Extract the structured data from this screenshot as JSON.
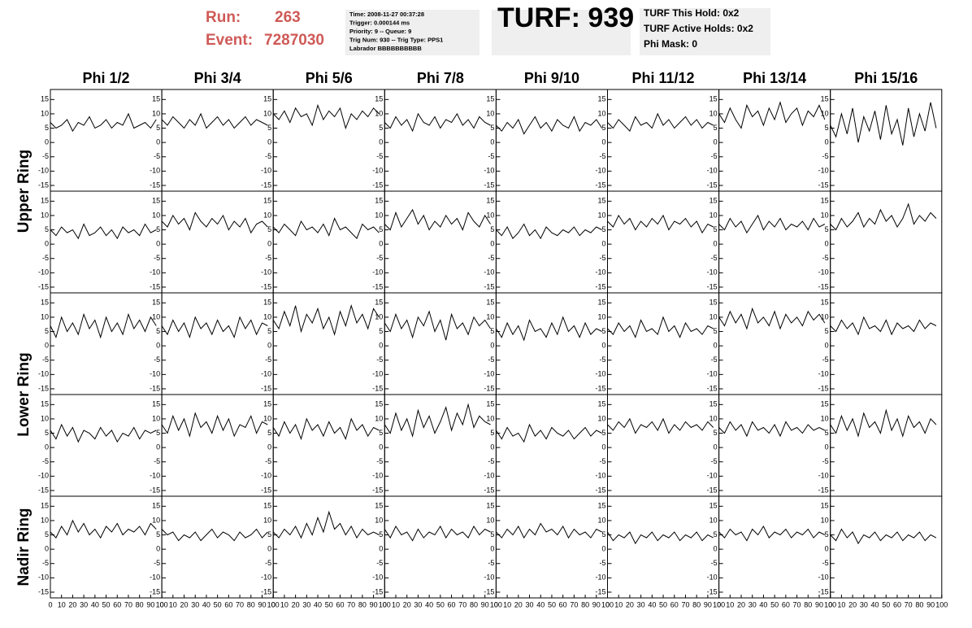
{
  "header": {
    "run_label": "Run:",
    "run": 263,
    "event_label": "Event:",
    "event": 7287030,
    "info": [
      "Time: 2008-11-27 00:37:28",
      "Trigger: 0.000144 ms",
      "Priority: 9 -- Queue: 9",
      "Trig Num: 930 -- Trig Type: PPS1",
      "Labrador BBBBBBBBBB"
    ],
    "turf": "TURF: 939",
    "turf_info": [
      "TURF This Hold: 0x2",
      "TURF Active Holds: 0x2",
      "Phi Mask: 0"
    ]
  },
  "chart_data": {
    "type": "line",
    "color": "#000000",
    "columns": [
      "Phi 1/2",
      "Phi 3/4",
      "Phi 5/6",
      "Phi 7/8",
      "Phi 9/10",
      "Phi 11/12",
      "Phi 13/14",
      "Phi 15/16"
    ],
    "ring_labels": [
      {
        "label": "Upper Ring",
        "rows": [
          0,
          1
        ]
      },
      {
        "label": "Lower Ring",
        "rows": [
          2,
          3
        ]
      },
      {
        "label": "Nadir Ring",
        "rows": [
          4,
          4
        ]
      }
    ],
    "xlim": [
      0,
      100
    ],
    "ylim": [
      -17,
      18.5
    ],
    "xticks": [
      0,
      10,
      20,
      30,
      40,
      50,
      60,
      70,
      80,
      90,
      100
    ],
    "yticks": [
      -15,
      -10,
      -5,
      0,
      5,
      10,
      15
    ],
    "x": [
      0,
      5,
      10,
      15,
      20,
      25,
      30,
      35,
      40,
      45,
      50,
      55,
      60,
      65,
      70,
      75,
      80,
      85,
      90,
      95
    ],
    "panels": [
      [
        [
          7,
          5,
          6,
          8,
          4,
          7,
          6,
          9,
          5,
          6,
          8,
          5,
          7,
          6,
          10,
          5,
          6,
          7,
          5,
          8
        ],
        [
          8,
          6,
          9,
          7,
          5,
          8,
          6,
          10,
          5,
          7,
          9,
          6,
          8,
          5,
          7,
          9,
          6,
          8,
          7,
          6
        ],
        [
          10,
          8,
          11,
          7,
          12,
          9,
          10,
          6,
          13,
          8,
          11,
          9,
          12,
          5,
          10,
          8,
          11,
          9,
          12,
          10
        ],
        [
          7,
          5,
          9,
          6,
          8,
          4,
          10,
          7,
          6,
          9,
          5,
          8,
          7,
          10,
          6,
          8,
          5,
          9,
          7,
          6
        ],
        [
          6,
          4,
          7,
          5,
          8,
          3,
          6,
          9,
          5,
          7,
          4,
          8,
          6,
          5,
          9,
          4,
          7,
          6,
          8,
          5
        ],
        [
          7,
          5,
          8,
          6,
          4,
          9,
          6,
          7,
          5,
          10,
          6,
          8,
          5,
          7,
          9,
          6,
          8,
          5,
          7,
          6
        ],
        [
          10,
          7,
          12,
          8,
          5,
          13,
          9,
          11,
          6,
          12,
          8,
          14,
          7,
          10,
          12,
          6,
          11,
          9,
          13,
          8
        ],
        [
          6,
          2,
          10,
          3,
          12,
          0,
          9,
          4,
          11,
          1,
          13,
          3,
          8,
          -1,
          12,
          2,
          10,
          4,
          14,
          5
        ]
      ],
      [
        [
          5,
          3,
          6,
          4,
          5,
          2,
          7,
          3,
          4,
          6,
          3,
          5,
          2,
          6,
          4,
          5,
          3,
          7,
          4,
          5
        ],
        [
          8,
          6,
          10,
          7,
          9,
          5,
          11,
          8,
          6,
          9,
          7,
          10,
          5,
          8,
          6,
          9,
          4,
          7,
          8,
          6
        ],
        [
          6,
          4,
          7,
          5,
          3,
          8,
          5,
          6,
          4,
          7,
          3,
          9,
          5,
          6,
          4,
          2,
          7,
          5,
          6,
          4
        ],
        [
          7,
          5,
          11,
          6,
          9,
          12,
          7,
          10,
          5,
          8,
          6,
          10,
          7,
          9,
          5,
          11,
          8,
          6,
          10,
          7
        ],
        [
          5,
          3,
          6,
          2,
          4,
          7,
          3,
          5,
          2,
          6,
          4,
          3,
          5,
          4,
          6,
          3,
          5,
          4,
          6,
          5
        ],
        [
          8,
          6,
          10,
          7,
          9,
          5,
          8,
          6,
          9,
          7,
          10,
          5,
          8,
          7,
          9,
          6,
          8,
          4,
          7,
          6
        ],
        [
          7,
          5,
          9,
          6,
          8,
          4,
          7,
          10,
          5,
          8,
          6,
          9,
          5,
          7,
          6,
          8,
          5,
          9,
          6,
          7
        ],
        [
          7,
          5,
          9,
          6,
          8,
          11,
          6,
          9,
          7,
          12,
          8,
          10,
          6,
          9,
          14,
          7,
          10,
          8,
          11,
          9
        ]
      ],
      [
        [
          7,
          3,
          10,
          5,
          8,
          4,
          11,
          6,
          9,
          3,
          10,
          5,
          8,
          4,
          11,
          6,
          9,
          5,
          10,
          7
        ],
        [
          7,
          4,
          9,
          5,
          8,
          3,
          10,
          6,
          8,
          4,
          9,
          5,
          7,
          3,
          10,
          6,
          9,
          4,
          8,
          7
        ],
        [
          9,
          6,
          12,
          7,
          14,
          5,
          11,
          8,
          13,
          6,
          10,
          4,
          12,
          7,
          14,
          8,
          11,
          6,
          13,
          10
        ],
        [
          8,
          5,
          11,
          6,
          9,
          3,
          10,
          7,
          12,
          5,
          9,
          2,
          11,
          6,
          8,
          4,
          10,
          7,
          9,
          6
        ],
        [
          6,
          3,
          8,
          4,
          7,
          2,
          9,
          5,
          6,
          3,
          8,
          4,
          10,
          5,
          7,
          3,
          8,
          4,
          6,
          5
        ],
        [
          6,
          4,
          8,
          5,
          7,
          3,
          9,
          5,
          6,
          4,
          10,
          5,
          7,
          3,
          8,
          5,
          6,
          4,
          7,
          6
        ],
        [
          10,
          7,
          12,
          8,
          11,
          6,
          13,
          8,
          10,
          7,
          12,
          6,
          11,
          8,
          10,
          7,
          12,
          9,
          11,
          8
        ],
        [
          7,
          5,
          9,
          6,
          8,
          4,
          10,
          6,
          7,
          5,
          9,
          4,
          8,
          6,
          7,
          5,
          9,
          6,
          8,
          7
        ]
      ],
      [
        [
          6,
          3,
          8,
          4,
          7,
          2,
          6,
          5,
          3,
          7,
          4,
          6,
          2,
          5,
          4,
          7,
          3,
          6,
          5,
          6
        ],
        [
          8,
          5,
          11,
          6,
          10,
          4,
          12,
          7,
          9,
          5,
          11,
          6,
          10,
          4,
          8,
          7,
          11,
          5,
          9,
          8
        ],
        [
          7,
          4,
          9,
          5,
          8,
          3,
          10,
          6,
          8,
          4,
          9,
          5,
          7,
          3,
          10,
          6,
          8,
          4,
          7,
          6
        ],
        [
          8,
          5,
          12,
          6,
          10,
          4,
          13,
          7,
          11,
          5,
          9,
          14,
          6,
          12,
          8,
          15,
          7,
          11,
          9,
          8
        ],
        [
          6,
          3,
          7,
          4,
          5,
          2,
          8,
          4,
          6,
          3,
          7,
          5,
          4,
          6,
          3,
          5,
          7,
          4,
          6,
          5
        ],
        [
          8,
          6,
          9,
          7,
          10,
          5,
          8,
          7,
          9,
          6,
          10,
          5,
          8,
          6,
          9,
          7,
          8,
          6,
          9,
          7
        ],
        [
          7,
          5,
          9,
          6,
          8,
          4,
          9,
          6,
          7,
          5,
          8,
          4,
          9,
          6,
          7,
          5,
          8,
          6,
          7,
          6
        ],
        [
          8,
          5,
          11,
          6,
          10,
          4,
          12,
          7,
          9,
          5,
          13,
          6,
          10,
          4,
          11,
          7,
          9,
          5,
          10,
          8
        ]
      ],
      [
        [
          6,
          4,
          8,
          5,
          10,
          6,
          9,
          5,
          7,
          4,
          8,
          6,
          9,
          5,
          7,
          6,
          8,
          5,
          9,
          7
        ],
        [
          7,
          5,
          6,
          3,
          5,
          4,
          6,
          3,
          5,
          7,
          4,
          6,
          5,
          3,
          6,
          4,
          5,
          7,
          4,
          6
        ],
        [
          6,
          4,
          7,
          5,
          8,
          4,
          9,
          5,
          11,
          6,
          13,
          7,
          9,
          5,
          8,
          4,
          7,
          5,
          6,
          5
        ],
        [
          7,
          4,
          8,
          5,
          6,
          3,
          7,
          4,
          6,
          5,
          8,
          4,
          7,
          5,
          6,
          4,
          8,
          5,
          7,
          6
        ],
        [
          6,
          4,
          7,
          5,
          8,
          4,
          7,
          5,
          9,
          6,
          7,
          5,
          8,
          4,
          7,
          5,
          6,
          4,
          7,
          6
        ],
        [
          6,
          3,
          5,
          4,
          6,
          2,
          5,
          4,
          6,
          3,
          5,
          4,
          6,
          3,
          5,
          4,
          6,
          3,
          5,
          4
        ],
        [
          6,
          4,
          7,
          5,
          6,
          3,
          7,
          5,
          8,
          4,
          6,
          5,
          7,
          4,
          6,
          5,
          7,
          4,
          6,
          5
        ],
        [
          5,
          3,
          7,
          4,
          6,
          2,
          5,
          4,
          6,
          3,
          5,
          4,
          6,
          3,
          5,
          4,
          6,
          3,
          5,
          4
        ]
      ]
    ]
  }
}
